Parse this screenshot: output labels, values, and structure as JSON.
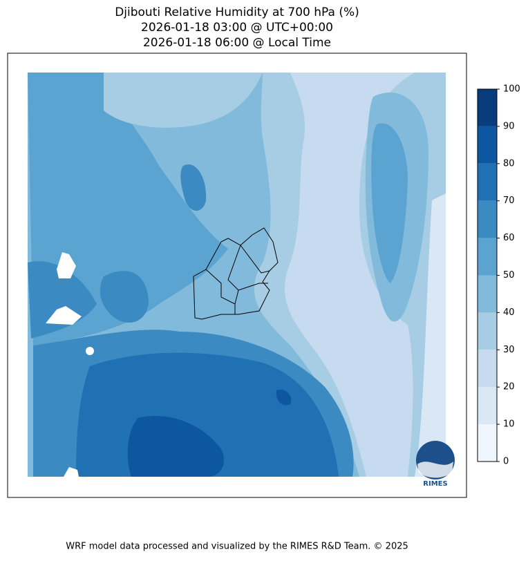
{
  "header": {
    "title": "Djibouti Relative Humidity at 700 hPa (%)",
    "utc_time": "2026-01-18 03:00 @ UTC+00:00",
    "local_time": "2026-01-18 06:00 @ Local Time"
  },
  "colorbar": {
    "ticks": [
      0,
      10,
      20,
      30,
      40,
      50,
      60,
      70,
      80,
      90,
      100
    ],
    "colors": [
      "#f0f6fd",
      "#dae8f6",
      "#c6dbef",
      "#a6cde3",
      "#82badb",
      "#5ba3d0",
      "#3b8bc2",
      "#2070b4",
      "#0d56a0",
      "#083c7d"
    ]
  },
  "logo": {
    "text": "RIMES"
  },
  "footer": {
    "text": "WRF model data processed and visualized by the RIMES R&D Team. © 2025"
  }
}
